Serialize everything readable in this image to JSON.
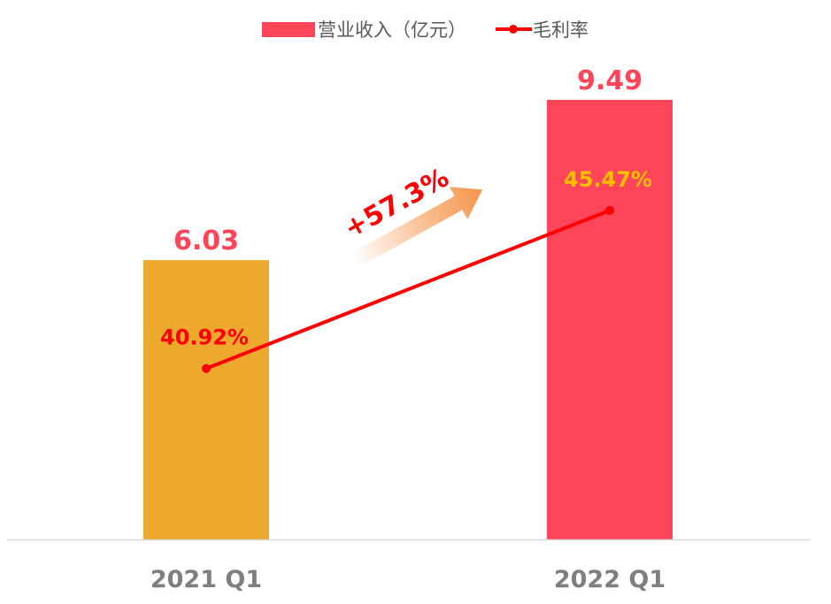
{
  "chart_data": {
    "type": "bar",
    "categories": [
      "2021 Q1",
      "2022 Q1"
    ],
    "series": [
      {
        "name": "营业收入（亿元）",
        "kind": "bar",
        "values": [
          6.03,
          9.49
        ],
        "labels": [
          "6.03",
          "9.49"
        ],
        "bar_colors": [
          "#EDA82E",
          "#FF4559"
        ],
        "label_color": "#FF4559"
      },
      {
        "name": "毛利率",
        "kind": "line",
        "values": [
          40.92,
          45.47
        ],
        "labels": [
          "40.92%",
          "45.47%"
        ],
        "line_color": "#FF0000",
        "label_colors": [
          "#FF0000",
          "#FFC000"
        ]
      }
    ],
    "y_left_range": [
      0,
      10.5
    ],
    "y_right_range": [
      36,
      50
    ],
    "legend": {
      "position": "top-center",
      "items": [
        "营业收入（亿元）",
        "毛利率"
      ]
    },
    "annotations": [
      {
        "text": "+57.3%",
        "color": "#FF0000",
        "arrow_color": "#F5944A"
      }
    ],
    "grid": false
  }
}
